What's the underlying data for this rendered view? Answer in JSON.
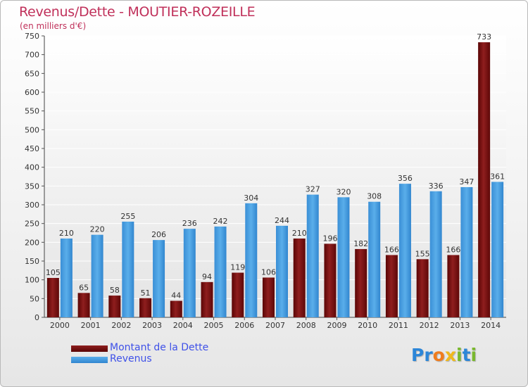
{
  "title": "Revenus/Dette - MOUTIER-ROZEILLE",
  "subtitle": "(en milliers d'€)",
  "colors": {
    "dette": "#7a1010",
    "revenus": "#3d98dd",
    "title": "#c0305a",
    "legend_text": "#3f51e8",
    "grid": "#ffffff"
  },
  "logo": {
    "letters": [
      "P",
      "r",
      "o",
      "x",
      "i",
      "t",
      "i"
    ],
    "colors": [
      "#2c86d8",
      "#2c86d8",
      "#f07c1c",
      "#f0b81c",
      "#7ab82e",
      "#2c86d8",
      "#7ab82e"
    ]
  },
  "chart_data": {
    "type": "bar",
    "title": "Revenus/Dette - MOUTIER-ROZEILLE",
    "subtitle": "(en milliers d'€)",
    "categories": [
      "2000",
      "2001",
      "2002",
      "2003",
      "2004",
      "2005",
      "2006",
      "2007",
      "2008",
      "2009",
      "2010",
      "2011",
      "2012",
      "2013",
      "2014"
    ],
    "series": [
      {
        "name": "Montant de la Dette",
        "values": [
          105,
          65,
          58,
          51,
          44,
          94,
          119,
          106,
          210,
          196,
          182,
          166,
          155,
          166,
          733
        ]
      },
      {
        "name": "Revenus",
        "values": [
          210,
          220,
          255,
          206,
          236,
          242,
          304,
          244,
          327,
          320,
          308,
          356,
          336,
          347,
          361
        ]
      }
    ],
    "ylim": [
      0,
      750
    ],
    "yticks": [
      0,
      50,
      100,
      150,
      200,
      250,
      300,
      350,
      400,
      450,
      500,
      550,
      600,
      650,
      700,
      750
    ],
    "xlabel": "",
    "ylabel": "",
    "grid": true,
    "legend_position": "bottom-left"
  }
}
